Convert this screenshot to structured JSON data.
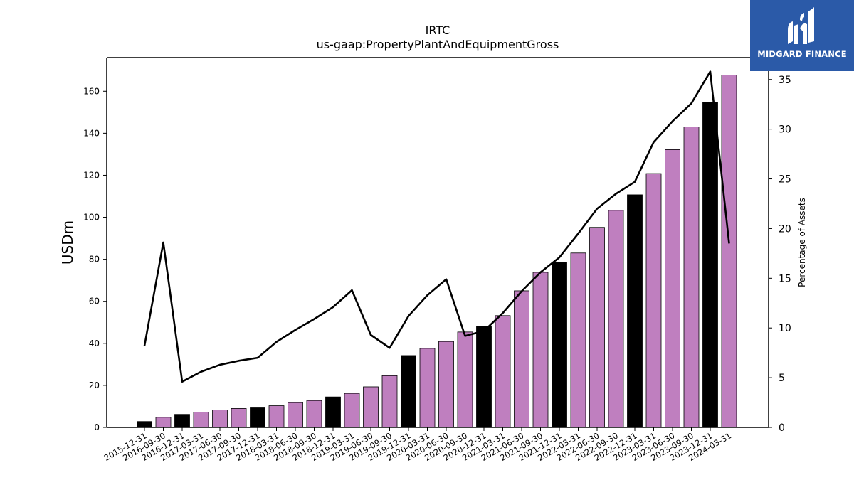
{
  "logo": {
    "text": "MIDGARD FINANCE",
    "background": "#2b5aa8"
  },
  "chart_data": {
    "type": "bar",
    "title": "IRTC",
    "subtitle": "us-gaap:PropertyPlantAndEquipmentGross",
    "ylabel": "USDm",
    "y2label": "Percentage of Assets",
    "ylim": [
      0,
      176
    ],
    "y2lim": [
      0,
      37.2
    ],
    "yticks": [
      0,
      20,
      40,
      60,
      80,
      100,
      120,
      140,
      160
    ],
    "y2ticks": [
      0,
      5,
      10,
      15,
      20,
      25,
      30,
      35
    ],
    "grid": false,
    "colors": {
      "quarterly": "#bf7fbf",
      "annual": "#000000",
      "line": "#000000"
    },
    "categories": [
      "2015-12-31",
      "2016-09-30",
      "2016-12-31",
      "2017-03-31",
      "2017-06-30",
      "2017-09-30",
      "2017-12-31",
      "2018-03-31",
      "2018-06-30",
      "2018-09-30",
      "2018-12-31",
      "2019-03-31",
      "2019-06-30",
      "2019-09-30",
      "2019-12-31",
      "2020-03-31",
      "2020-06-30",
      "2020-09-30",
      "2020-12-31",
      "2021-03-31",
      "2021-06-30",
      "2021-09-30",
      "2021-12-31",
      "2022-03-31",
      "2022-06-30",
      "2022-09-30",
      "2022-12-31",
      "2023-03-31",
      "2023-06-30",
      "2023-09-30",
      "2023-12-31",
      "2024-03-31"
    ],
    "series": [
      {
        "type": "bar",
        "values": [
          2.8,
          4.8,
          6.2,
          7.3,
          8.3,
          9.0,
          9.3,
          10.3,
          11.8,
          12.8,
          14.5,
          16.2,
          19.3,
          24.6,
          34.2,
          37.6,
          40.9,
          45.4,
          48.0,
          53.2,
          65.0,
          73.8,
          78.5,
          83.0,
          95.2,
          103.3,
          110.7,
          120.8,
          132.2,
          143.0,
          154.6,
          167.7
        ],
        "annual": [
          true,
          false,
          true,
          false,
          false,
          false,
          true,
          false,
          false,
          false,
          true,
          false,
          false,
          false,
          true,
          false,
          false,
          false,
          true,
          false,
          false,
          false,
          true,
          false,
          false,
          false,
          true,
          false,
          false,
          false,
          true,
          false
        ]
      },
      {
        "type": "line",
        "axis": "right",
        "values": [
          8.2,
          18.6,
          4.6,
          5.6,
          6.3,
          6.7,
          7.0,
          8.6,
          9.8,
          10.9,
          12.1,
          13.8,
          9.3,
          8.0,
          11.2,
          13.3,
          14.9,
          9.2,
          9.7,
          11.5,
          13.7,
          15.6,
          17.1,
          19.5,
          22.0,
          23.5,
          24.7,
          28.7,
          30.8,
          32.6,
          35.8,
          18.5
        ]
      }
    ]
  }
}
